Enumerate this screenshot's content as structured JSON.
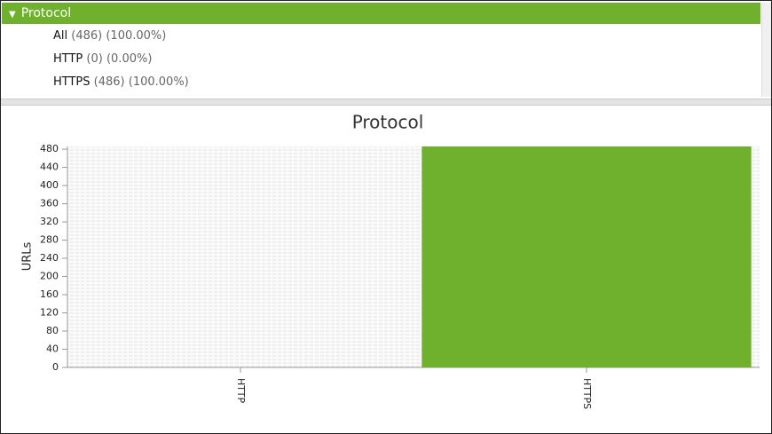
{
  "panel": {
    "header": "Protocol",
    "items": [
      {
        "name": "All",
        "detail": "(486) (100.00%)"
      },
      {
        "name": "HTTP",
        "detail": "(0) (0.00%)"
      },
      {
        "name": "HTTPS",
        "detail": "(486) (100.00%)"
      }
    ]
  },
  "chart_data": {
    "type": "bar",
    "title": "Protocol",
    "y_label": "URLs",
    "categories": [
      "HTTP",
      "HTTPS"
    ],
    "values": [
      0,
      486
    ],
    "color": "#6fb12c",
    "ylim": [
      0,
      486
    ],
    "yticks": [
      0,
      40,
      80,
      120,
      160,
      200,
      240,
      280,
      320,
      360,
      400,
      440,
      480
    ]
  }
}
